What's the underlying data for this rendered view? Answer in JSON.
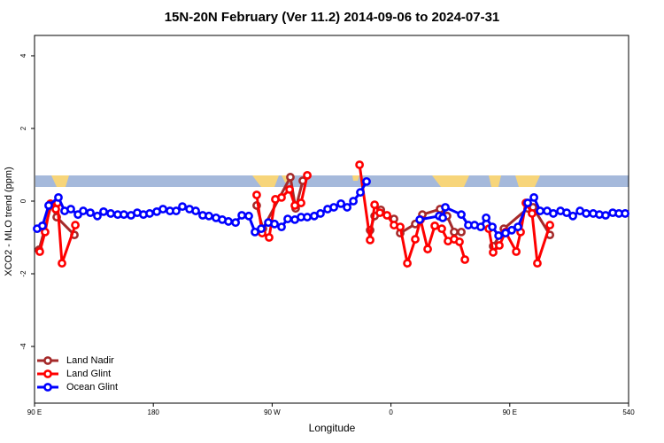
{
  "chart_data": {
    "type": "line",
    "title": "15N-20N February (Ver 11.2)   2014-09-06 to 2024-07-31",
    "x_label": "Longitude",
    "y_label": "XCO2 - MLO trend (ppm)",
    "xlim": [
      90,
      540
    ],
    "ylim": [
      -5.56,
      4.56
    ],
    "xticks": [
      {
        "value": 90,
        "label": "90 E"
      },
      180,
      {
        "value": 270,
        "label": "90 W"
      },
      {
        "value": 360,
        "label": "0"
      },
      {
        "value": 450,
        "label": "90 E"
      },
      540
    ],
    "yticks": [
      -4,
      -2,
      0,
      2,
      4
    ],
    "legend": "bottomleft",
    "series": [
      {
        "name": "Land Nadir",
        "color": "#a52a2a",
        "x": [
          93.4,
          102.7,
          106.8,
          120.2,
          null,
          258.3,
          263.0,
          283.8,
          287.8,
          293.2,
          null,
          344.2,
          347.6,
          352.3,
          362.3,
          367.0,
          378.4,
          383.8,
          397.2,
          402.5,
          407.9,
          413.3,
          null,
          437.4,
          445.5,
          463.6,
          467.6,
          480.4
        ],
        "values": [
          -1.34,
          -0.1,
          -0.44,
          -0.93,
          null,
          -0.12,
          -0.76,
          0.66,
          -0.2,
          0.56,
          null,
          -0.8,
          -0.41,
          -0.24,
          -0.49,
          -0.88,
          -0.63,
          -0.37,
          -0.22,
          -0.41,
          -0.85,
          -0.85,
          null,
          -1.24,
          -0.76,
          -0.2,
          -0.17,
          -0.93
        ]
      },
      {
        "name": "Land Glint",
        "color": "#ff0000",
        "x": [
          94.0,
          98.0,
          102.1,
          106.1,
          107.4,
          110.8,
          120.9,
          null,
          258.3,
          262.4,
          267.7,
          272.4,
          277.1,
          283.2,
          287.2,
          291.9,
          296.6,
          null,
          336.2,
          344.2,
          347.6,
          351.6,
          357.0,
          362.3,
          367.0,
          372.4,
          378.4,
          382.4,
          387.8,
          393.2,
          398.5,
          403.2,
          407.9,
          411.9,
          416.0,
          null,
          434.1,
          437.4,
          442.1,
          446.8,
          454.9,
          458.2,
          462.2,
          466.9,
          470.9,
          480.4
        ],
        "values": [
          -1.39,
          -0.85,
          -0.07,
          -0.22,
          -0.05,
          -1.71,
          -0.66,
          null,
          0.17,
          -0.88,
          -1.0,
          0.05,
          0.1,
          0.32,
          -0.12,
          -0.05,
          0.71,
          null,
          1.0,
          -1.07,
          -0.1,
          -0.32,
          -0.39,
          -0.66,
          -0.71,
          -1.71,
          -1.05,
          -0.51,
          -1.32,
          -0.68,
          -0.76,
          -1.1,
          -1.05,
          -1.12,
          -1.61,
          null,
          -0.76,
          -1.41,
          -1.22,
          -0.85,
          -1.39,
          -0.85,
          -0.05,
          -0.34,
          -1.71,
          -0.66
        ]
      },
      {
        "name": "Ocean Glint",
        "color": "#0000ff",
        "x": [
          92.0,
          96.0,
          100.7,
          108.1,
          112.8,
          117.5,
          122.9,
          126.9,
          132.3,
          137.6,
          142.3,
          147.7,
          153.0,
          157.7,
          163.1,
          167.8,
          172.5,
          177.2,
          182.6,
          187.3,
          192.6,
          197.3,
          202.0,
          207.4,
          212.1,
          217.4,
          222.1,
          227.5,
          232.2,
          236.9,
          242.3,
          247.0,
          252.3,
          257.0,
          261.7,
          267.1,
          271.8,
          277.1,
          281.8,
          287.2,
          291.9,
          296.6,
          301.9,
          306.6,
          312.0,
          316.7,
          322.1,
          326.8,
          331.5,
          336.8,
          341.5,
          null,
          381.8,
          396.5,
          399.2,
          401.2,
          413.3,
          418.6,
          423.3,
          428.0,
          432.1,
          436.8,
          441.5,
          446.8,
          451.5,
          456.2,
          463.6,
          468.3,
          473.0,
          478.3,
          483.0,
          488.4,
          493.1,
          497.8,
          503.2,
          507.9,
          513.2,
          517.9,
          522.6,
          528.0,
          532.7,
          537.4
        ],
        "values": [
          -0.76,
          -0.68,
          -0.12,
          0.1,
          -0.27,
          -0.22,
          -0.37,
          -0.27,
          -0.32,
          -0.41,
          -0.29,
          -0.34,
          -0.37,
          -0.37,
          -0.39,
          -0.32,
          -0.37,
          -0.34,
          -0.29,
          -0.22,
          -0.27,
          -0.27,
          -0.15,
          -0.22,
          -0.27,
          -0.39,
          -0.41,
          -0.46,
          -0.51,
          -0.56,
          -0.59,
          -0.39,
          -0.41,
          -0.85,
          -0.76,
          -0.59,
          -0.63,
          -0.71,
          -0.49,
          -0.51,
          -0.44,
          -0.44,
          -0.41,
          -0.34,
          -0.22,
          -0.17,
          -0.07,
          -0.17,
          0.0,
          0.24,
          0.54,
          null,
          -0.51,
          -0.41,
          -0.46,
          -0.17,
          -0.37,
          -0.66,
          -0.66,
          -0.71,
          -0.46,
          -0.71,
          -0.95,
          -0.88,
          -0.8,
          -0.71,
          -0.05,
          0.1,
          -0.27,
          -0.27,
          -0.34,
          -0.27,
          -0.32,
          -0.41,
          -0.27,
          -0.34,
          -0.34,
          -0.37,
          -0.39,
          -0.32,
          -0.34,
          -0.34
        ]
      }
    ]
  }
}
